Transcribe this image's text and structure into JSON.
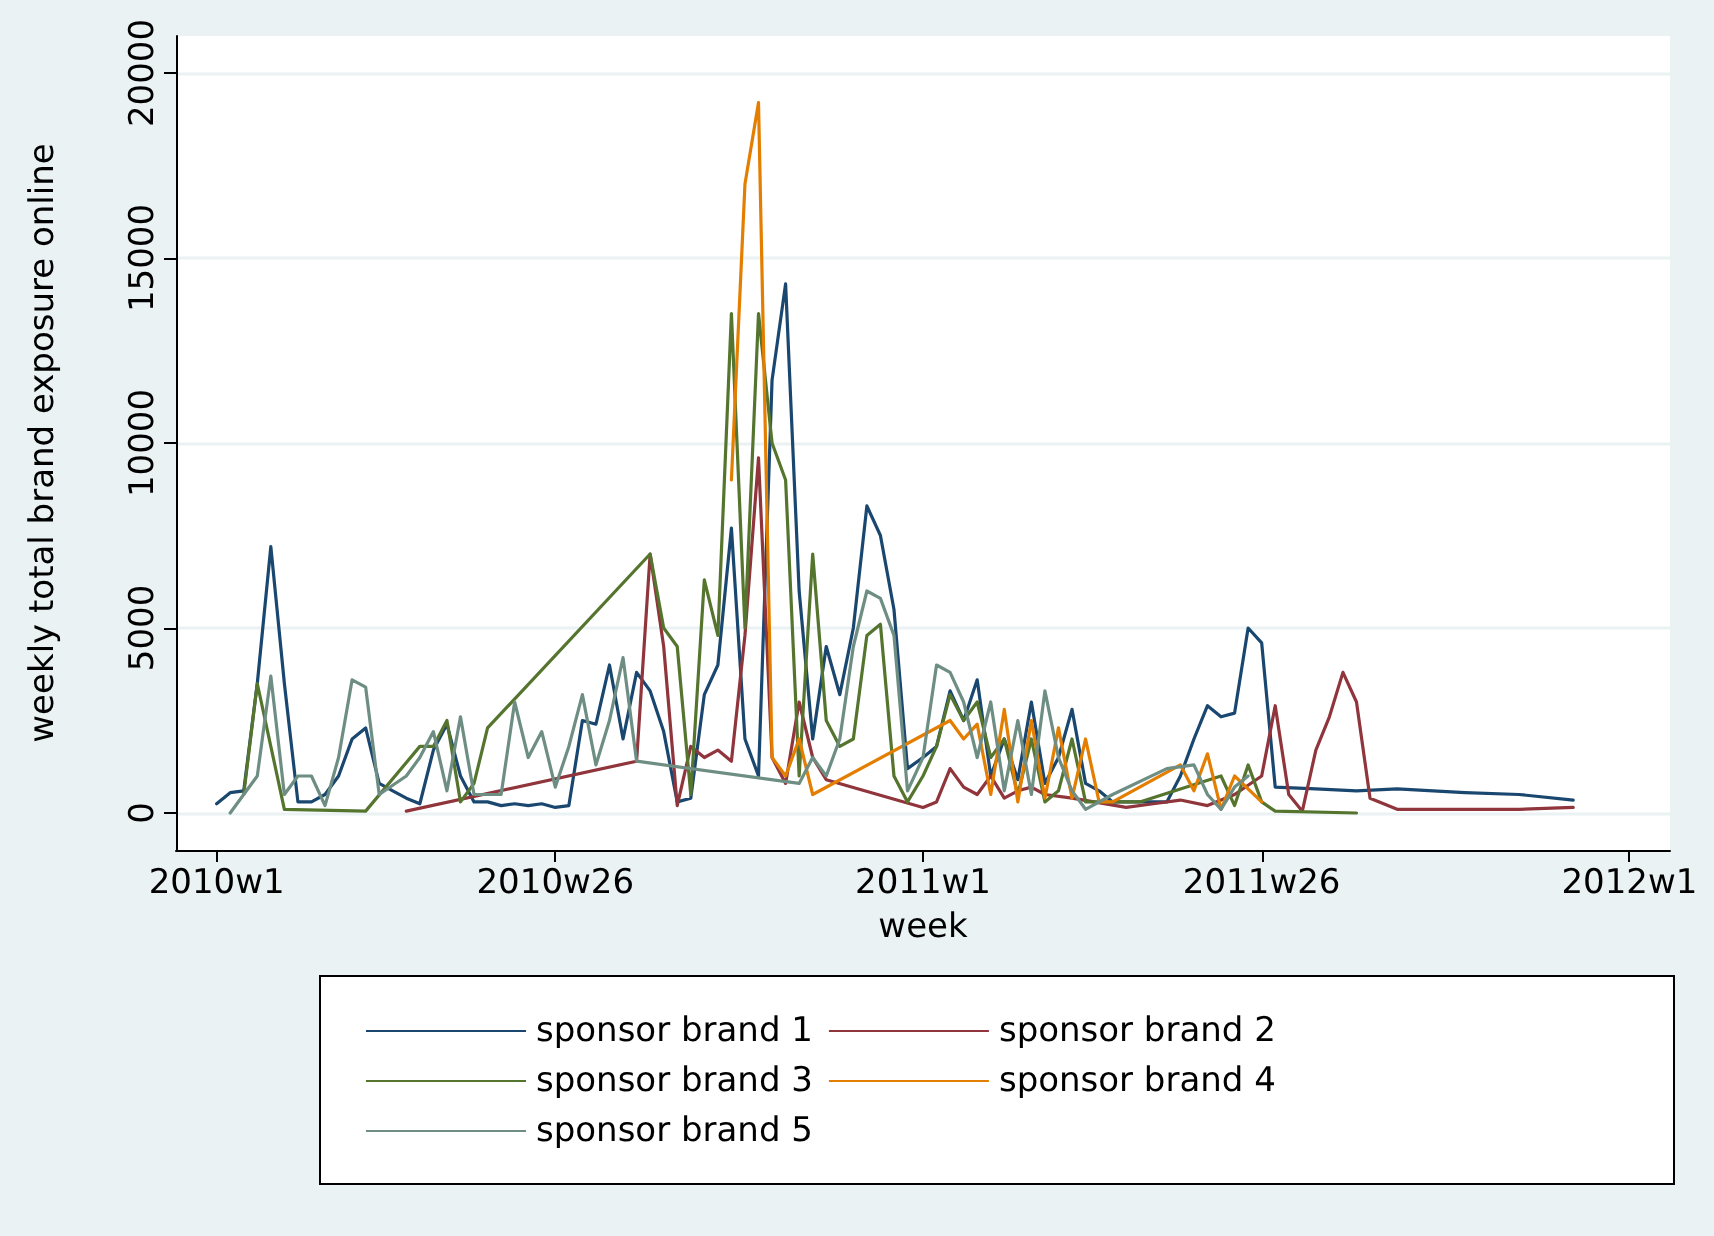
{
  "chart_data": {
    "type": "line",
    "xlabel": "week",
    "ylabel": "weekly total brand exposure online",
    "xlim": [
      "2009-12-11",
      "2012-01-22"
    ],
    "ylim": [
      -1000,
      21000
    ],
    "xticks": [
      {
        "value": "2010-01-01",
        "label": "2010w1"
      },
      {
        "value": "2010-06-25",
        "label": "2010w26"
      },
      {
        "value": "2011-01-01",
        "label": "2011w1"
      },
      {
        "value": "2011-06-25",
        "label": "2011w26"
      },
      {
        "value": "2012-01-01",
        "label": "2012w1"
      }
    ],
    "yticks": [
      0,
      5000,
      10000,
      15000,
      20000
    ],
    "grid": "y",
    "legend": "bottom",
    "marker": "none",
    "line_style": "solid",
    "series": [
      {
        "name": "sponsor brand 1",
        "color": "#1a476f",
        "x": [
          "2010-01-01",
          "2010-01-08",
          "2010-01-15",
          "2010-01-22",
          "2010-01-29",
          "2010-02-05",
          "2010-02-12",
          "2010-02-19",
          "2010-02-26",
          "2010-03-05",
          "2010-03-12",
          "2010-03-19",
          "2010-03-26",
          "2010-04-02",
          "2010-04-09",
          "2010-04-16",
          "2010-04-23",
          "2010-04-30",
          "2010-05-07",
          "2010-05-14",
          "2010-05-21",
          "2010-05-28",
          "2010-06-04",
          "2010-06-11",
          "2010-06-18",
          "2010-06-25",
          "2010-07-02",
          "2010-07-09",
          "2010-07-16",
          "2010-07-23",
          "2010-07-30",
          "2010-08-06",
          "2010-08-13",
          "2010-08-20",
          "2010-08-27",
          "2010-09-03",
          "2010-09-10",
          "2010-09-17",
          "2010-09-24",
          "2010-10-01",
          "2010-10-08",
          "2010-10-15",
          "2010-10-22",
          "2010-10-29",
          "2010-11-05",
          "2010-11-12",
          "2010-11-19",
          "2010-11-26",
          "2010-12-03",
          "2010-12-10",
          "2010-12-17",
          "2010-12-24",
          "2011-01-01",
          "2011-01-08",
          "2011-01-15",
          "2011-01-22",
          "2011-01-29",
          "2011-02-05",
          "2011-02-12",
          "2011-02-19",
          "2011-02-26",
          "2011-03-05",
          "2011-03-12",
          "2011-03-19",
          "2011-03-26",
          "2011-04-02",
          "2011-04-09",
          "2011-04-23",
          "2011-05-07",
          "2011-05-14",
          "2011-05-21",
          "2011-05-28",
          "2011-06-04",
          "2011-06-11",
          "2011-06-18",
          "2011-06-25",
          "2011-07-02",
          "2011-07-23",
          "2011-08-13",
          "2011-09-03",
          "2011-10-08",
          "2011-11-05",
          "2011-12-03"
        ],
        "values": [
          250,
          550,
          600,
          3500,
          7200,
          3500,
          300,
          300,
          500,
          1000,
          2000,
          2300,
          800,
          600,
          400,
          250,
          1700,
          2400,
          1000,
          300,
          300,
          200,
          250,
          200,
          250,
          150,
          200,
          2500,
          2400,
          4000,
          2000,
          3800,
          3300,
          2200,
          300,
          400,
          3200,
          4000,
          7700,
          2000,
          1000,
          11700,
          14300,
          6000,
          2000,
          4500,
          3200,
          5000,
          8300,
          7500,
          5500,
          1200,
          1500,
          1800,
          3300,
          2500,
          3600,
          1000,
          2000,
          900,
          3000,
          800,
          1500,
          2800,
          800,
          600,
          300,
          300,
          300,
          1000,
          2000,
          2900,
          2600,
          2700,
          5000,
          4600,
          700,
          650,
          600,
          650,
          550,
          500,
          350
        ]
      },
      {
        "name": "sponsor brand 2",
        "color": "#90353b",
        "x": [
          "2010-04-09",
          "2010-08-06",
          "2010-08-13",
          "2010-08-20",
          "2010-08-27",
          "2010-09-03",
          "2010-09-10",
          "2010-09-17",
          "2010-09-24",
          "2010-10-01",
          "2010-10-08",
          "2010-10-15",
          "2010-10-22",
          "2010-10-29",
          "2010-11-05",
          "2010-11-12",
          "2011-01-01",
          "2011-01-08",
          "2011-01-15",
          "2011-01-22",
          "2011-01-29",
          "2011-02-05",
          "2011-02-12",
          "2011-02-19",
          "2011-02-26",
          "2011-03-05",
          "2011-03-19",
          "2011-04-16",
          "2011-04-30",
          "2011-05-14",
          "2011-05-28",
          "2011-06-11",
          "2011-06-25",
          "2011-07-02",
          "2011-07-09",
          "2011-07-16",
          "2011-07-23",
          "2011-07-30",
          "2011-08-06",
          "2011-08-13",
          "2011-08-20",
          "2011-09-03",
          "2011-11-05",
          "2011-12-03"
        ],
        "values": [
          50,
          1400,
          7000,
          4500,
          200,
          1800,
          1500,
          1700,
          1400,
          4800,
          9600,
          1500,
          800,
          3000,
          1500,
          900,
          150,
          300,
          1200,
          700,
          500,
          1000,
          400,
          600,
          700,
          500,
          400,
          150,
          250,
          350,
          200,
          500,
          1000,
          2900,
          500,
          50,
          1700,
          2600,
          3800,
          3000,
          400,
          100,
          100,
          150
        ]
      },
      {
        "name": "sponsor brand 3",
        "color": "#55752f",
        "x": [
          "2010-01-15",
          "2010-01-22",
          "2010-02-05",
          "2010-03-19",
          "2010-04-16",
          "2010-04-23",
          "2010-04-30",
          "2010-05-07",
          "2010-05-14",
          "2010-05-21",
          "2010-08-13",
          "2010-08-20",
          "2010-08-27",
          "2010-09-03",
          "2010-09-10",
          "2010-09-17",
          "2010-09-24",
          "2010-10-01",
          "2010-10-08",
          "2010-10-15",
          "2010-10-22",
          "2010-10-29",
          "2010-11-05",
          "2010-11-12",
          "2010-11-19",
          "2010-11-26",
          "2010-12-03",
          "2010-12-10",
          "2010-12-17",
          "2010-12-24",
          "2011-01-01",
          "2011-01-08",
          "2011-01-15",
          "2011-01-22",
          "2011-01-29",
          "2011-02-05",
          "2011-02-12",
          "2011-02-19",
          "2011-02-26",
          "2011-03-05",
          "2011-03-12",
          "2011-03-19",
          "2011-03-26",
          "2011-04-02",
          "2011-04-23",
          "2011-06-04",
          "2011-06-11",
          "2011-06-18",
          "2011-06-25",
          "2011-07-02",
          "2011-08-13"
        ],
        "values": [
          500,
          3500,
          100,
          50,
          1800,
          1800,
          2500,
          300,
          800,
          2300,
          7000,
          5000,
          4500,
          500,
          6300,
          4800,
          13500,
          5000,
          13500,
          10000,
          9000,
          1000,
          7000,
          2500,
          1800,
          2000,
          4800,
          5100,
          1000,
          300,
          1000,
          1800,
          3200,
          2500,
          3000,
          1500,
          2000,
          500,
          2000,
          300,
          600,
          2000,
          300,
          300,
          300,
          1000,
          200,
          1300,
          300,
          50,
          0
        ]
      },
      {
        "name": "sponsor brand 4",
        "color": "#e37e00",
        "x": [
          "2010-09-24",
          "2010-10-01",
          "2010-10-08",
          "2010-10-15",
          "2010-10-22",
          "2010-10-29",
          "2010-11-05",
          "2011-01-15",
          "2011-01-22",
          "2011-01-29",
          "2011-02-05",
          "2011-02-12",
          "2011-02-19",
          "2011-02-26",
          "2011-03-05",
          "2011-03-12",
          "2011-03-19",
          "2011-03-26",
          "2011-04-02",
          "2011-04-09",
          "2011-05-14",
          "2011-05-21",
          "2011-05-28",
          "2011-06-04",
          "2011-06-11",
          "2011-06-25"
        ],
        "values": [
          9000,
          17000,
          19200,
          1500,
          1000,
          2000,
          500,
          2500,
          2000,
          2400,
          500,
          2800,
          300,
          2500,
          400,
          2300,
          400,
          2000,
          300,
          300,
          1300,
          600,
          1600,
          100,
          1000,
          300
        ]
      },
      {
        "name": "sponsor brand 5",
        "color": "#6e8e84",
        "x": [
          "2010-01-08",
          "2010-01-22",
          "2010-01-29",
          "2010-02-05",
          "2010-02-12",
          "2010-02-19",
          "2010-02-26",
          "2010-03-05",
          "2010-03-12",
          "2010-03-19",
          "2010-03-26",
          "2010-04-09",
          "2010-04-16",
          "2010-04-23",
          "2010-04-30",
          "2010-05-07",
          "2010-05-14",
          "2010-05-28",
          "2010-06-04",
          "2010-06-11",
          "2010-06-18",
          "2010-06-25",
          "2010-07-02",
          "2010-07-09",
          "2010-07-16",
          "2010-07-23",
          "2010-07-30",
          "2010-08-06",
          "2010-10-29",
          "2010-11-05",
          "2010-11-12",
          "2010-11-19",
          "2010-11-26",
          "2010-12-03",
          "2010-12-10",
          "2010-12-17",
          "2010-12-24",
          "2011-01-01",
          "2011-01-08",
          "2011-01-15",
          "2011-01-22",
          "2011-01-29",
          "2011-02-05",
          "2011-02-12",
          "2011-02-19",
          "2011-02-26",
          "2011-03-05",
          "2011-03-12",
          "2011-03-19",
          "2011-03-26",
          "2011-04-09",
          "2011-05-07",
          "2011-05-21",
          "2011-05-28",
          "2011-06-04",
          "2011-06-11",
          "2011-06-18"
        ],
        "values": [
          0,
          1000,
          3700,
          500,
          1000,
          1000,
          200,
          1500,
          3600,
          3400,
          500,
          1000,
          1500,
          2200,
          600,
          2600,
          500,
          500,
          3000,
          1500,
          2200,
          700,
          1800,
          3200,
          1300,
          2500,
          4200,
          1400,
          800,
          1500,
          1000,
          2000,
          4500,
          6000,
          5800,
          4800,
          600,
          1500,
          4000,
          3800,
          3000,
          1500,
          3000,
          600,
          2500,
          500,
          3300,
          1500,
          600,
          100,
          500,
          1200,
          1300,
          500,
          100,
          700,
          1000
        ]
      }
    ]
  }
}
